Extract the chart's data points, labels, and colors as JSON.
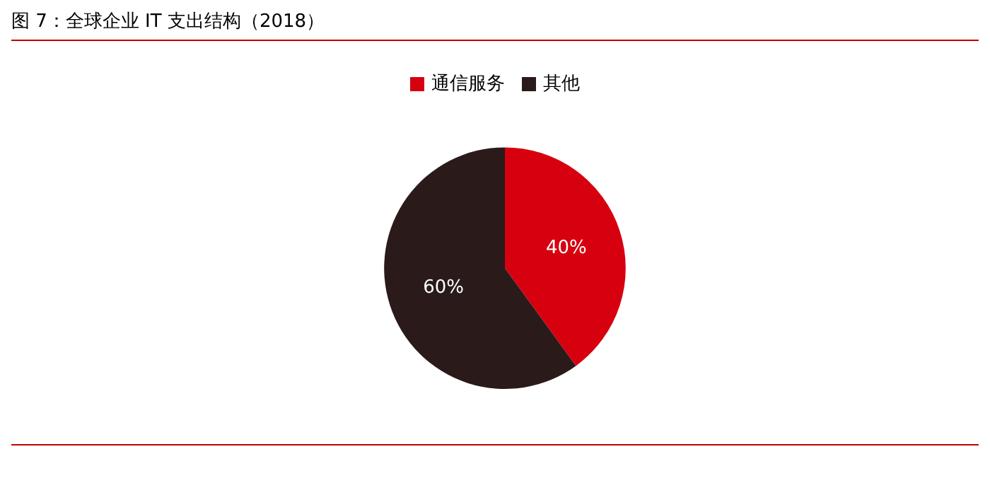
{
  "chart_data": {
    "type": "pie",
    "title": "图 7：全球企业 IT 支出结构（2018）",
    "categories": [
      "通信服务",
      "其他"
    ],
    "values": [
      40,
      60
    ],
    "colors": [
      "#d7000f",
      "#2a1a1a"
    ],
    "value_labels": [
      "40%",
      "60%"
    ],
    "legend": "top"
  }
}
